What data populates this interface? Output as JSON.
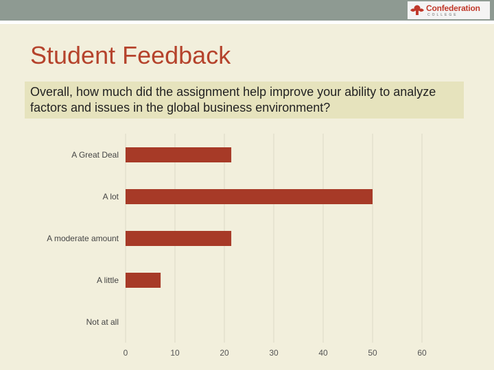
{
  "slide": {
    "title": "Student Feedback",
    "question": "Overall, how much did the assignment help improve your ability to analyze factors and issues in the global business environment?"
  },
  "logo": {
    "name": "Confederation",
    "subtitle": "COLLEGE"
  },
  "colors": {
    "background": "#f2efdc",
    "bar": "#a73a27",
    "title": "#b5432c",
    "question_box": "#e6e3bd",
    "top_bar": "#8e9a92",
    "gridline": "#dcdac6"
  },
  "chart_data": {
    "type": "bar",
    "orientation": "horizontal",
    "categories": [
      "A Great Deal",
      "A lot",
      "A moderate amount",
      "A little",
      "Not at all"
    ],
    "values": [
      21.4,
      50,
      21.4,
      7.1,
      0
    ],
    "xlim": [
      0,
      60
    ],
    "xticks": [
      0,
      10,
      20,
      30,
      40,
      50,
      60
    ],
    "grid": true,
    "legend": "none"
  }
}
